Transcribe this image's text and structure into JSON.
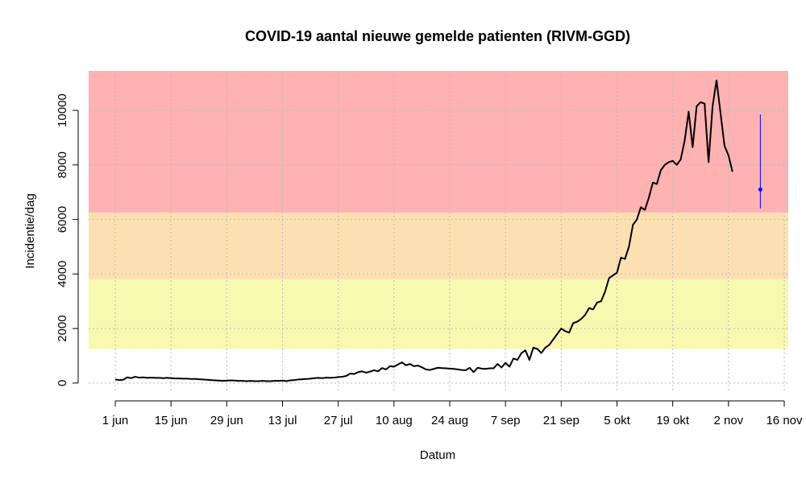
{
  "chart_data": {
    "type": "line",
    "title": "COVID-19 aantal nieuwe gemelde patienten  (RIVM-GGD)",
    "xlabel": "Datum",
    "ylabel": "Incidentie/dag",
    "categories": [
      "1 jun",
      null,
      null,
      null,
      null,
      null,
      null,
      null,
      null,
      null,
      null,
      null,
      null,
      null,
      "15 jun",
      null,
      null,
      null,
      null,
      null,
      null,
      null,
      null,
      null,
      null,
      null,
      null,
      null,
      "29 jun",
      null,
      null,
      null,
      null,
      null,
      null,
      null,
      null,
      null,
      null,
      null,
      null,
      null,
      "13 jul",
      null,
      null,
      null,
      null,
      null,
      null,
      null,
      null,
      null,
      null,
      null,
      null,
      null,
      "27 jul",
      null,
      null,
      null,
      null,
      null,
      null,
      null,
      null,
      null,
      null,
      null,
      null,
      null,
      "10 aug",
      null,
      null,
      null,
      null,
      null,
      null,
      null,
      null,
      null,
      null,
      null,
      null,
      null,
      "24 aug",
      null,
      null,
      null,
      null,
      null,
      null,
      null,
      null,
      null,
      null,
      null,
      null,
      null,
      "7 sep",
      null,
      null,
      null,
      null,
      null,
      null,
      null,
      null,
      null,
      null,
      null,
      null,
      null,
      "21 sep",
      null,
      null,
      null,
      null,
      null,
      null,
      null,
      null,
      null,
      null,
      null,
      null,
      null,
      "5 okt",
      null,
      null,
      null,
      null,
      null,
      null,
      null,
      null,
      null,
      null,
      null,
      null,
      null,
      "19 okt",
      null,
      null,
      null,
      null,
      null,
      null,
      null,
      null,
      null,
      null,
      null,
      null,
      null,
      "2 nov",
      null,
      null,
      null,
      null,
      null,
      null,
      null,
      null,
      null,
      null,
      null,
      null,
      null,
      "16 nov"
    ],
    "series": [
      {
        "color": "#000000",
        "values": [
          130,
          110,
          120,
          210,
          180,
          230,
          200,
          210,
          190,
          200,
          190,
          190,
          180,
          190,
          180,
          170,
          170,
          160,
          160,
          150,
          150,
          140,
          130,
          120,
          110,
          100,
          90,
          80,
          90,
          100,
          90,
          80,
          80,
          70,
          80,
          70,
          70,
          80,
          70,
          70,
          80,
          80,
          90,
          70,
          100,
          110,
          130,
          140,
          150,
          160,
          180,
          190,
          180,
          200,
          190,
          200,
          220,
          230,
          260,
          350,
          330,
          400,
          430,
          380,
          420,
          470,
          430,
          550,
          500,
          620,
          600,
          680,
          760,
          650,
          700,
          620,
          640,
          580,
          500,
          480,
          520,
          560,
          550,
          540,
          530,
          520,
          500,
          480,
          470,
          560,
          400,
          560,
          530,
          520,
          540,
          540,
          700,
          570,
          740,
          600,
          900,
          850,
          1100,
          1200,
          850,
          1300,
          1250,
          1100,
          1300,
          1400,
          1600,
          1800,
          2000,
          1900,
          1850,
          2200,
          2250,
          2350,
          2500,
          2750,
          2700,
          2950,
          3000,
          3350,
          3850,
          3950,
          4050,
          4600,
          4550,
          5000,
          5800,
          6000,
          6450,
          6350,
          6800,
          7350,
          7300,
          7800,
          8000,
          8100,
          8150,
          8000,
          8200,
          8900,
          9950,
          8650,
          10150,
          10300,
          10250,
          8100,
          10150,
          11100,
          9900,
          8700,
          8350,
          7750,
          null,
          null,
          null,
          null,
          null,
          null,
          null,
          null,
          null,
          null,
          null,
          null,
          null
        ]
      },
      {
        "color": "#0000ff",
        "lower": 6400,
        "upper": 9850,
        "values": [
          null,
          null,
          null,
          null,
          null,
          null,
          null,
          null,
          null,
          null,
          null,
          null,
          null,
          null,
          null,
          null,
          null,
          null,
          null,
          null,
          null,
          null,
          null,
          null,
          null,
          null,
          null,
          null,
          null,
          null,
          null,
          null,
          null,
          null,
          null,
          null,
          null,
          null,
          null,
          null,
          null,
          null,
          null,
          null,
          null,
          null,
          null,
          null,
          null,
          null,
          null,
          null,
          null,
          null,
          null,
          null,
          null,
          null,
          null,
          null,
          null,
          null,
          null,
          null,
          null,
          null,
          null,
          null,
          null,
          null,
          null,
          null,
          null,
          null,
          null,
          null,
          null,
          null,
          null,
          null,
          null,
          null,
          null,
          null,
          null,
          null,
          null,
          null,
          null,
          null,
          null,
          null,
          null,
          null,
          null,
          null,
          null,
          null,
          null,
          null,
          null,
          null,
          null,
          null,
          null,
          null,
          null,
          null,
          null,
          null,
          null,
          null,
          null,
          null,
          null,
          null,
          null,
          null,
          null,
          null,
          null,
          null,
          null,
          null,
          null,
          null,
          null,
          null,
          null,
          null,
          null,
          null,
          null,
          null,
          null,
          null,
          null,
          null,
          null,
          null,
          null,
          null,
          null,
          null,
          null,
          null,
          null,
          null,
          null,
          null,
          null,
          null,
          null,
          null,
          null,
          null,
          null,
          null,
          null,
          null,
          null,
          null,
          7100,
          null,
          null,
          null,
          null,
          null,
          null
        ]
      }
    ],
    "bands": [
      {
        "from": 1250,
        "color": "#f8f8b0"
      },
      {
        "from": 3800,
        "color": "#fde0b2"
      },
      {
        "from": 6250,
        "color": "#ffb2b2"
      }
    ],
    "ylim": [
      -300,
      11450
    ],
    "yticks": [
      0,
      2000,
      4000,
      6000,
      8000,
      10000
    ],
    "grid": true
  }
}
